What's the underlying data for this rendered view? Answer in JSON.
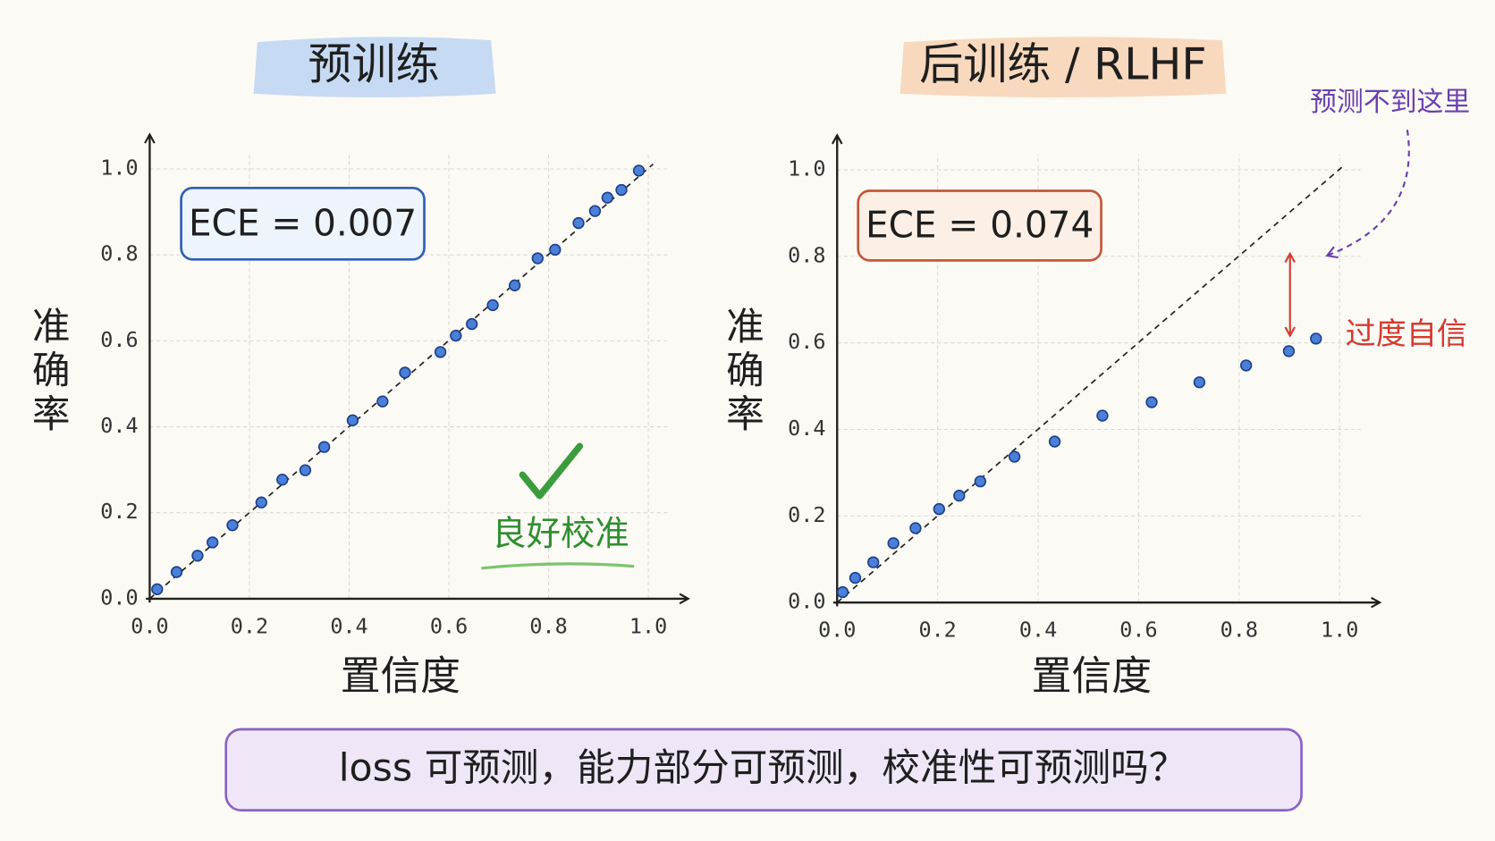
{
  "chart_data": [
    {
      "type": "scatter",
      "title": "预训练",
      "xlabel": "置信度",
      "ylabel": "准确率",
      "annotations": {
        "ece": "ECE = 0.007",
        "note": "良好校准"
      },
      "x": [
        0.015,
        0.054,
        0.096,
        0.126,
        0.166,
        0.224,
        0.266,
        0.312,
        0.35,
        0.407,
        0.467,
        0.512,
        0.583,
        0.614,
        0.646,
        0.688,
        0.732,
        0.778,
        0.813,
        0.86,
        0.893,
        0.918,
        0.946,
        0.981
      ],
      "values": [
        0.022,
        0.062,
        0.1,
        0.131,
        0.171,
        0.224,
        0.277,
        0.299,
        0.353,
        0.415,
        0.459,
        0.526,
        0.574,
        0.612,
        0.639,
        0.683,
        0.729,
        0.792,
        0.812,
        0.874,
        0.902,
        0.933,
        0.951,
        0.996
      ],
      "color": "#4a80d8",
      "xlim": [
        0,
        1.08
      ],
      "ylim": [
        0,
        1.08
      ],
      "xticks": [
        {
          "value": 0,
          "label": "0.0"
        },
        0.2,
        0.4,
        0.6,
        0.8,
        {
          "value": 1,
          "label": "1.0"
        }
      ],
      "yticks": [
        {
          "value": 0,
          "label": "0.0"
        },
        0.2,
        0.4,
        0.6,
        0.8,
        {
          "value": 1,
          "label": "1.0"
        }
      ],
      "grid": true,
      "diagonal": true
    },
    {
      "type": "scatter",
      "title": "后训练 / RLHF",
      "xlabel": "置信度",
      "ylabel": "准确率",
      "annotations": {
        "ece": "ECE = 0.074",
        "note": "过度自信",
        "pointer": "预测不到这里"
      },
      "x": [
        0.011,
        0.036,
        0.072,
        0.112,
        0.156,
        0.203,
        0.243,
        0.285,
        0.353,
        0.433,
        0.528,
        0.626,
        0.721,
        0.814,
        0.899,
        0.953
      ],
      "values": [
        0.024,
        0.057,
        0.093,
        0.137,
        0.172,
        0.216,
        0.247,
        0.28,
        0.337,
        0.372,
        0.432,
        0.463,
        0.509,
        0.548,
        0.581,
        0.61
      ],
      "color": "#4a80d8",
      "xlim": [
        0,
        1.08
      ],
      "ylim": [
        0,
        1.08
      ],
      "xticks": [
        {
          "value": 0,
          "label": "0.0"
        },
        0.2,
        0.4,
        0.6,
        0.8,
        {
          "value": 1,
          "label": "1.0"
        }
      ],
      "yticks": [
        {
          "value": 0,
          "label": "0.0"
        },
        0.2,
        0.4,
        0.6,
        0.8,
        {
          "value": 1,
          "label": "1.0"
        }
      ],
      "grid": true,
      "diagonal": true
    }
  ],
  "footer": "loss 可预测，能力部分可预测，校准性可预测吗？"
}
